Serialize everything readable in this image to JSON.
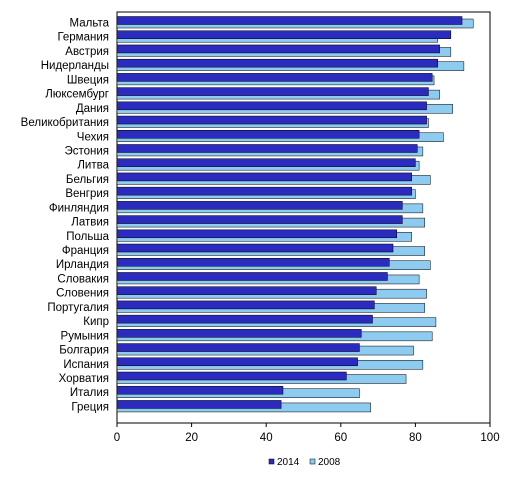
{
  "chart_data": {
    "type": "bar",
    "orientation": "horizontal",
    "title": "",
    "xlabel": "",
    "ylabel": "",
    "xlim": [
      0,
      100
    ],
    "x_ticks": [
      0,
      20,
      40,
      60,
      80,
      100
    ],
    "grid": false,
    "legend_position": "bottom-center",
    "categories": [
      "Мальта",
      "Германия",
      "Австрия",
      "Нидерланды",
      "Швеция",
      "Люксембург",
      "Дания",
      "Великобритания",
      "Чехия",
      "Эстония",
      "Литва",
      "Бельгия",
      "Венгрия",
      "Финляндия",
      "Латвия",
      "Польша",
      "Франция",
      "Ирландия",
      "Словакия",
      "Словения",
      "Португалия",
      "Кипр",
      "Румыния",
      "Болгария",
      "Испания",
      "Хорватия",
      "Италия",
      "Греция"
    ],
    "series": [
      {
        "name": "2014",
        "color": "#2b2bc0",
        "values": [
          92.5,
          89.5,
          86.5,
          86,
          84.5,
          83.5,
          83,
          83,
          81,
          80.5,
          80,
          79,
          79,
          76.5,
          76.5,
          75,
          74,
          73,
          72.5,
          69.5,
          69,
          68.5,
          65.5,
          65,
          64.5,
          61.5,
          44.5,
          44
        ]
      },
      {
        "name": "2008",
        "color": "#8ecbf0",
        "values": [
          95.5,
          86,
          89.5,
          93,
          85,
          86.5,
          90,
          83.5,
          87.5,
          82,
          81,
          84,
          80,
          82,
          82.5,
          79,
          82.5,
          84,
          81,
          83,
          82.5,
          85.5,
          84.5,
          79.5,
          82,
          77.5,
          65,
          68
        ]
      }
    ]
  }
}
